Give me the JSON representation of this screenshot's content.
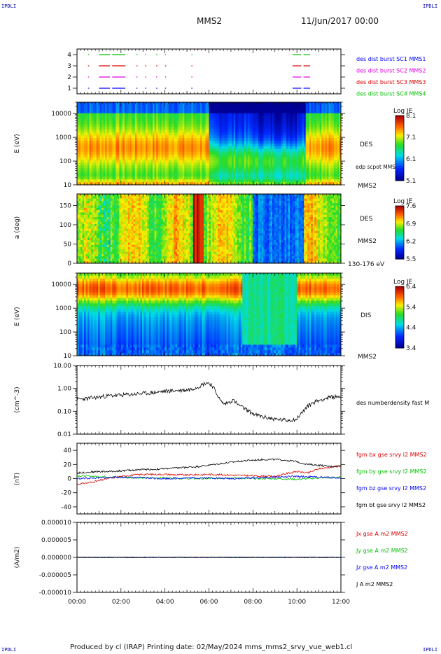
{
  "header": {
    "corner_label": "IPDLI",
    "spacecraft": "MMS2",
    "date": "11/Jun/2017 00:00"
  },
  "footer": {
    "text": "Produced by cl (IRAP)   Printing date: 02/May/2024   mms_mms2_srvy_vue_web1.cl"
  },
  "colors": {
    "blue": "#0000ff",
    "magenta": "#e000e0",
    "red": "#dd0000",
    "green": "#00c000",
    "black": "#000000"
  },
  "chart_data": [
    {
      "id": "availability",
      "type": "scatter",
      "yticks": [
        "1",
        "2",
        "3",
        "4"
      ],
      "ylim": [
        0.5,
        4.5
      ],
      "legend": [
        {
          "text": "des dist burst SC1 MMS1",
          "color": "#0000ff"
        },
        {
          "text": "des dist burst SC2 MMS2",
          "color": "#e000e0"
        },
        {
          "text": "des dist burst SC3 MMS3",
          "color": "#dd0000"
        },
        {
          "text": "des dist burst SC4 MMS4",
          "color": "#00c000"
        }
      ],
      "intervals_hours": [
        [
          0.5,
          0.55
        ],
        [
          1.0,
          1.5
        ],
        [
          1.6,
          2.2
        ],
        [
          2.7,
          2.75
        ],
        [
          3.1,
          3.15
        ],
        [
          3.6,
          3.65
        ],
        [
          4.0,
          4.05
        ],
        [
          5.2,
          5.25
        ],
        [
          9.8,
          10.2
        ],
        [
          10.3,
          10.6
        ]
      ]
    },
    {
      "id": "des-energy",
      "type": "heatmap",
      "ylabel": "E (eV)",
      "yscale": "log",
      "ylim": [
        10,
        30000
      ],
      "yticks": [
        "10",
        "100",
        "1000",
        "10000"
      ],
      "instrument": "DES",
      "spacecraft": "MMS2",
      "overlay_label": "edp scpot MMS2",
      "colorbar": {
        "title": "Log JE",
        "ticks": [
          "8.1",
          "7.1",
          "6.1",
          "5.1"
        ],
        "range": [
          5.1,
          8.1
        ]
      }
    },
    {
      "id": "des-pitch",
      "type": "heatmap",
      "ylabel": "a (deg)",
      "ylim": [
        0,
        180
      ],
      "yticks": [
        "0",
        "50",
        "100",
        "150"
      ],
      "instrument": "DES",
      "spacecraft": "MMS2",
      "energy_range": "130-176 eV",
      "colorbar": {
        "title": "Log JE",
        "ticks": [
          "7.6",
          "6.9",
          "6.2",
          "5.5"
        ],
        "range": [
          5.5,
          7.6
        ]
      }
    },
    {
      "id": "dis-energy",
      "type": "heatmap",
      "ylabel": "E (eV)",
      "yscale": "log",
      "ylim": [
        10,
        30000
      ],
      "yticks": [
        "10",
        "100",
        "1000",
        "10000"
      ],
      "instrument": "DIS",
      "spacecraft": "MMS2",
      "colorbar": {
        "title": "Log JE",
        "ticks": [
          "6.4",
          "5.4",
          "4.4",
          "3.4"
        ],
        "range": [
          3.4,
          6.4
        ]
      }
    },
    {
      "id": "density",
      "type": "line",
      "ylabel": "(cm^-3)",
      "yscale": "log",
      "ylim": [
        0.01,
        10
      ],
      "yticks": [
        "10.00",
        "1.00",
        "0.10",
        "0.01"
      ],
      "series": [
        {
          "name": "des numberdensity fast M",
          "color": "#000000",
          "x": [
            0,
            0.5,
            1,
            1.5,
            2,
            2.5,
            3,
            3.5,
            4,
            4.5,
            5,
            5.3,
            5.6,
            5.9,
            6.1,
            6.3,
            6.5,
            6.7,
            6.9,
            7.1,
            7.3,
            7.5,
            7.8,
            8.1,
            8.5,
            9,
            9.5,
            10,
            10.3,
            10.6,
            11,
            11.5,
            12
          ],
          "values": [
            0.33,
            0.36,
            0.42,
            0.48,
            0.5,
            0.55,
            0.6,
            0.65,
            0.75,
            0.8,
            0.85,
            1.0,
            1.3,
            1.8,
            1.5,
            0.7,
            0.3,
            0.2,
            0.25,
            0.3,
            0.2,
            0.15,
            0.1,
            0.07,
            0.055,
            0.045,
            0.04,
            0.045,
            0.1,
            0.2,
            0.3,
            0.4,
            0.45
          ]
        }
      ]
    },
    {
      "id": "magnetic-field",
      "type": "line",
      "ylabel": "(nT)",
      "ylim": [
        -50,
        50
      ],
      "yticks": [
        "40",
        "20",
        "0",
        "-20",
        "-40"
      ],
      "series": [
        {
          "name": "fgm bx gse srvy l2 MMS2",
          "color": "#dd0000",
          "x": [
            0,
            0.5,
            1,
            1.5,
            2,
            2.5,
            3,
            4,
            5,
            6,
            7,
            8,
            9,
            9.5,
            10,
            10.5,
            11,
            11.5,
            12
          ],
          "values": [
            -8,
            -6,
            -3,
            1,
            3,
            5,
            6,
            6,
            5,
            6,
            5,
            4,
            3,
            7,
            10,
            8,
            14,
            16,
            18
          ]
        },
        {
          "name": "fgm by gse srvy l2 MMS2",
          "color": "#00c000",
          "x": [
            0,
            1,
            2,
            3,
            4,
            5,
            6,
            7,
            8,
            9,
            10,
            11,
            12
          ],
          "values": [
            4,
            3,
            2,
            1,
            1,
            0,
            0,
            1,
            0,
            0,
            -1,
            1,
            2
          ]
        },
        {
          "name": "fgm bz gse srvy l2 MMS2",
          "color": "#0000ff",
          "x": [
            0,
            1,
            2,
            3,
            4,
            5,
            6,
            7,
            8,
            9,
            10,
            11,
            12
          ],
          "values": [
            0,
            1,
            2,
            1,
            0,
            1,
            1,
            0,
            1,
            2,
            3,
            2,
            1
          ]
        },
        {
          "name": "fgm bt gse srvy l2 MMS2",
          "color": "#000000",
          "x": [
            0,
            0.5,
            1,
            1.5,
            2,
            2.5,
            3,
            3.5,
            4,
            4.5,
            5,
            5.5,
            6,
            6.5,
            7,
            7.5,
            8,
            8.5,
            9,
            9.5,
            10,
            10.5,
            11,
            11.5,
            12
          ],
          "values": [
            8,
            9,
            10,
            10,
            11,
            12,
            13,
            13,
            14,
            15,
            16,
            17,
            19,
            21,
            23,
            25,
            26,
            27,
            27,
            26,
            24,
            20,
            19,
            17,
            18
          ]
        }
      ]
    },
    {
      "id": "current-density",
      "type": "line",
      "ylabel": "(A/m2)",
      "ylim": [
        -1e-05,
        1e-05
      ],
      "yticks": [
        "0.000010",
        "0.000005",
        "0.000000",
        "-0.000005",
        "-0.000010"
      ],
      "series": [
        {
          "name": "Jx gse A m2 MMS2",
          "color": "#dd0000",
          "x": [
            0,
            12
          ],
          "values": [
            0,
            0
          ]
        },
        {
          "name": "Jy gse A m2 MMS2",
          "color": "#00c000",
          "x": [
            0,
            12
          ],
          "values": [
            0,
            0
          ]
        },
        {
          "name": "Jz gse A m2 MMS2",
          "color": "#0000ff",
          "x": [
            0,
            12
          ],
          "values": [
            0,
            0
          ]
        },
        {
          "name": "J A m2 MMS2",
          "color": "#000000",
          "x": [
            0,
            12
          ],
          "values": [
            0,
            0
          ]
        }
      ]
    }
  ],
  "time_axis": {
    "range_hours": [
      0,
      12
    ],
    "ticks": [
      "00:00",
      "02:00",
      "04:00",
      "06:00",
      "08:00",
      "10:00",
      "12:00"
    ]
  }
}
